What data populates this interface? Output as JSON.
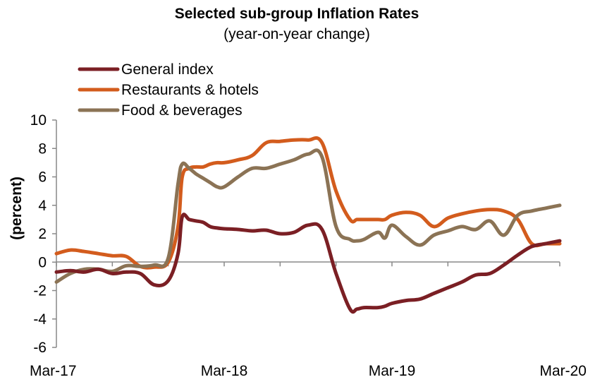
{
  "chart_data": {
    "type": "line",
    "title": "Selected sub-group Inflation Rates",
    "subtitle": "(year-on-year change)",
    "ylabel": "(percent)",
    "xlabel": "",
    "ylim": [
      -6,
      10
    ],
    "yticks": [
      "10",
      "8",
      "6",
      "4",
      "2",
      "0",
      "-2",
      "-4",
      "-6"
    ],
    "ytick_values": [
      10,
      8,
      6,
      4,
      2,
      0,
      -2,
      -4,
      -6
    ],
    "xticks": [
      "Mar-17",
      "Mar-18",
      "Mar-19",
      "Mar-20"
    ],
    "xtick_positions": [
      0,
      12,
      24,
      36
    ],
    "x_unit": "months since Mar-17",
    "legend_position": "top-left",
    "grid": false,
    "series": [
      {
        "name": "General index",
        "color": "#7B1F24",
        "x": [
          0,
          1,
          2,
          3,
          4,
          5,
          6,
          7,
          8,
          8.7,
          9,
          9.5,
          10,
          10.5,
          11,
          11.5,
          12,
          13,
          14,
          15,
          16,
          17,
          18,
          19,
          20,
          21,
          21.5,
          22,
          23,
          23.5,
          24,
          25,
          26,
          27,
          28,
          29,
          30,
          31,
          32,
          33,
          34,
          35,
          36
        ],
        "values": [
          -0.7,
          -0.6,
          -0.7,
          -0.5,
          -0.8,
          -0.7,
          -0.8,
          -1.6,
          -1.3,
          0.6,
          3.2,
          3.0,
          2.9,
          2.8,
          2.5,
          2.4,
          2.35,
          2.3,
          2.2,
          2.25,
          2.0,
          2.1,
          2.6,
          2.3,
          -0.8,
          -3.3,
          -3.3,
          -3.2,
          -3.2,
          -3.1,
          -2.9,
          -2.7,
          -2.6,
          -2.2,
          -1.8,
          -1.4,
          -0.9,
          -0.8,
          -0.2,
          0.5,
          1.1,
          1.3,
          1.5
        ]
      },
      {
        "name": "Restaurants & hotels",
        "color": "#D35C1D",
        "x": [
          0,
          1,
          2,
          3,
          4,
          5,
          6,
          7,
          8,
          8.7,
          9,
          9.5,
          10,
          10.5,
          11,
          11.5,
          12,
          13,
          14,
          15,
          16,
          17,
          18,
          19,
          20,
          21,
          21.5,
          22,
          23,
          23.5,
          24,
          25,
          26,
          27,
          28,
          29,
          30,
          31,
          32,
          33,
          34,
          35,
          36
        ],
        "values": [
          0.6,
          0.85,
          0.75,
          0.6,
          0.45,
          0.4,
          -0.3,
          -0.35,
          0.0,
          2.5,
          6.0,
          6.6,
          6.7,
          6.7,
          6.9,
          7.0,
          7.0,
          7.2,
          7.5,
          8.4,
          8.5,
          8.6,
          8.6,
          8.4,
          5.0,
          3.0,
          3.0,
          3.0,
          3.0,
          3.0,
          3.3,
          3.5,
          3.3,
          2.5,
          3.1,
          3.4,
          3.6,
          3.7,
          3.6,
          3.0,
          1.3,
          1.3,
          1.3
        ]
      },
      {
        "name": "Food & beverages",
        "color": "#8B7355",
        "x": [
          0,
          1,
          2,
          3,
          4,
          5,
          6,
          7,
          8,
          8.7,
          9,
          9.5,
          10,
          10.5,
          11,
          11.5,
          12,
          13,
          14,
          15,
          16,
          17,
          18,
          19,
          20,
          21,
          21.5,
          22,
          23,
          23.5,
          24,
          25,
          26,
          27,
          28,
          29,
          30,
          31,
          32,
          33,
          34,
          35,
          36
        ],
        "values": [
          -1.4,
          -0.8,
          -0.5,
          -0.5,
          -0.65,
          -0.25,
          -0.3,
          -0.2,
          0.3,
          5.5,
          6.9,
          6.6,
          6.2,
          5.9,
          5.6,
          5.3,
          5.3,
          6.0,
          6.6,
          6.6,
          6.9,
          7.2,
          7.6,
          7.4,
          2.5,
          1.6,
          1.5,
          1.6,
          2.1,
          1.7,
          2.6,
          1.8,
          1.2,
          1.9,
          2.2,
          2.5,
          2.3,
          2.9,
          1.9,
          3.3,
          3.6,
          3.8,
          4.0
        ]
      }
    ]
  }
}
